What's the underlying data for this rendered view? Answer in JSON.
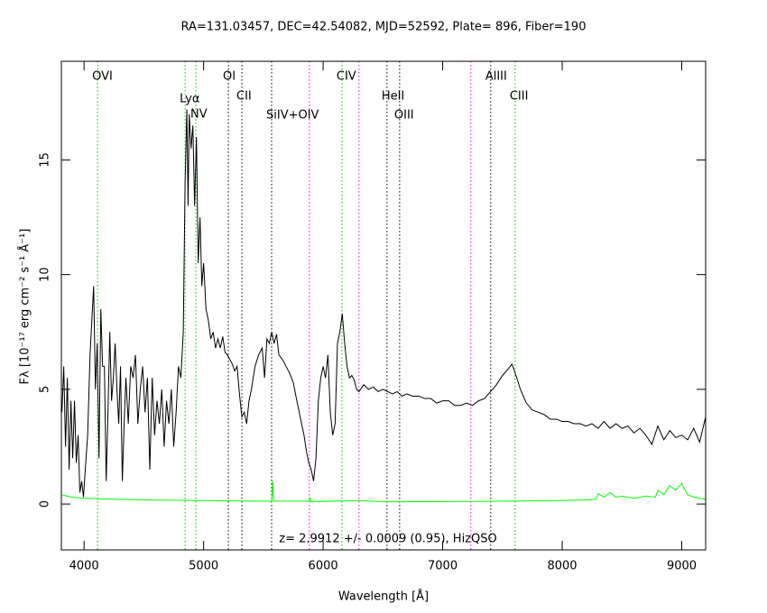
{
  "chart_data": {
    "type": "line",
    "title": "RA=131.03457, DEC=42.54082, MJD=52592, Plate= 896, Fiber=190",
    "x_label": "Wavelength [Å]",
    "y_label": "Fλ [10⁻¹⁷ erg cm⁻² s⁻¹ Å⁻¹]",
    "annotation": "z= 2.9912 +/- 0.0009 (0.95), HizQSO",
    "xlim": [
      3810,
      9200
    ],
    "ylim": [
      -2,
      19.3
    ],
    "xticks": [
      4000,
      5000,
      6000,
      7000,
      8000,
      9000
    ],
    "yticks": [
      0,
      5,
      10,
      15
    ],
    "lines": [
      {
        "name": "OVI",
        "x": 4113,
        "color": "#00c800"
      },
      {
        "name": "Lyα",
        "x": 4845,
        "color": "#00c800"
      },
      {
        "name": "NV",
        "x": 4935,
        "color": "#00c800"
      },
      {
        "name": "OI",
        "x": 5207,
        "color": "#000000"
      },
      {
        "name": "CII",
        "x": 5320,
        "color": "#000000"
      },
      {
        "name": "SiIV+OIV",
        "x": 5569,
        "color": "#000000"
      },
      {
        "x": 5885,
        "color": "#ff00ff"
      },
      {
        "name": "CIV",
        "x": 6157,
        "color": "#00c800"
      },
      {
        "x": 6300,
        "color": "#ff00ff"
      },
      {
        "name": "HeII",
        "x": 6534,
        "color": "#000000"
      },
      {
        "name": "OIII",
        "x": 6640,
        "color": "#000000"
      },
      {
        "x": 7236,
        "color": "#ff00ff"
      },
      {
        "name": "AlIII",
        "x": 7402,
        "color": "#000000"
      },
      {
        "name": "CIII",
        "x": 7606,
        "color": "#00c800"
      }
    ],
    "series": [
      {
        "color": "#000000",
        "x": [
          3815,
          3830,
          3845,
          3860,
          3875,
          3890,
          3905,
          3920,
          3935,
          3950,
          3965,
          3980,
          3995,
          4010,
          4030,
          4050,
          4065,
          4080,
          4095,
          4110,
          4125,
          4140,
          4155,
          4170,
          4185,
          4200,
          4215,
          4230,
          4245,
          4260,
          4275,
          4290,
          4305,
          4320,
          4335,
          4350,
          4370,
          4390,
          4410,
          4430,
          4450,
          4470,
          4490,
          4510,
          4530,
          4550,
          4570,
          4590,
          4610,
          4630,
          4650,
          4670,
          4690,
          4710,
          4730,
          4750,
          4770,
          4790,
          4810,
          4830,
          4845,
          4860,
          4870,
          4880,
          4895,
          4910,
          4925,
          4940,
          4955,
          4970,
          4985,
          5000,
          5020,
          5040,
          5060,
          5080,
          5100,
          5120,
          5140,
          5160,
          5180,
          5200,
          5220,
          5240,
          5260,
          5280,
          5300,
          5320,
          5340,
          5360,
          5380,
          5400,
          5430,
          5460,
          5490,
          5510,
          5530,
          5550,
          5570,
          5590,
          5610,
          5630,
          5660,
          5690,
          5720,
          5750,
          5780,
          5800,
          5820,
          5840,
          5860,
          5880,
          5900,
          5920,
          5940,
          5960,
          5980,
          6000,
          6020,
          6040,
          6060,
          6080,
          6100,
          6120,
          6140,
          6160,
          6180,
          6200,
          6220,
          6240,
          6260,
          6280,
          6300,
          6340,
          6380,
          6420,
          6460,
          6500,
          6540,
          6580,
          6620,
          6660,
          6700,
          6750,
          6800,
          6850,
          6900,
          6950,
          7000,
          7050,
          7100,
          7150,
          7200,
          7250,
          7300,
          7350,
          7400,
          7450,
          7500,
          7550,
          7580,
          7620,
          7650,
          7700,
          7750,
          7800,
          7850,
          7900,
          7950,
          8000,
          8050,
          8100,
          8150,
          8200,
          8250,
          8300,
          8350,
          8400,
          8450,
          8500,
          8550,
          8600,
          8650,
          8700,
          8750,
          8800,
          8850,
          8900,
          8950,
          9000,
          9050,
          9100,
          9150,
          9200
        ],
        "values": [
          4.0,
          6.0,
          2.5,
          5.5,
          1.5,
          4.5,
          2.0,
          4.5,
          1.8,
          3.0,
          0.5,
          1.0,
          0.3,
          1.5,
          3.0,
          6.5,
          8.0,
          9.5,
          5.0,
          7.0,
          2.0,
          8.5,
          6.0,
          6.0,
          1.0,
          4.0,
          7.5,
          4.5,
          5.5,
          7.0,
          5.0,
          3.5,
          6.0,
          1.0,
          3.5,
          5.5,
          3.5,
          6.0,
          5.5,
          6.5,
          3.5,
          5.0,
          6.0,
          4.0,
          5.5,
          1.5,
          5.5,
          3.0,
          4.5,
          3.5,
          5.0,
          2.5,
          4.5,
          3.5,
          5.0,
          2.5,
          4.0,
          6.0,
          5.5,
          7.5,
          14.0,
          17.2,
          13.0,
          17.0,
          15.5,
          16.5,
          13.0,
          16.0,
          10.5,
          12.5,
          9.5,
          10.5,
          8.5,
          8.0,
          7.2,
          7.5,
          6.8,
          7.2,
          6.8,
          7.3,
          6.6,
          6.5,
          6.3,
          6.1,
          5.8,
          6.0,
          4.8,
          3.8,
          4.0,
          3.5,
          4.5,
          5.0,
          6.0,
          6.5,
          6.8,
          5.5,
          7.2,
          7.0,
          7.5,
          7.0,
          7.4,
          6.5,
          6.3,
          6.0,
          5.7,
          5.3,
          4.5,
          4.0,
          3.5,
          3.0,
          2.3,
          1.8,
          1.5,
          1.0,
          2.0,
          4.5,
          5.5,
          6.0,
          5.5,
          6.5,
          4.0,
          3.0,
          3.5,
          7.0,
          7.5,
          8.3,
          7.0,
          6.0,
          5.5,
          5.6,
          5.4,
          5.0,
          4.9,
          5.2,
          5.0,
          5.1,
          4.9,
          5.0,
          4.9,
          4.8,
          4.9,
          4.7,
          4.8,
          4.7,
          4.7,
          4.6,
          4.6,
          4.4,
          4.5,
          4.5,
          4.3,
          4.3,
          4.4,
          4.3,
          4.5,
          4.6,
          4.9,
          5.2,
          5.6,
          5.9,
          6.1,
          5.5,
          5.0,
          4.4,
          4.1,
          4.0,
          3.9,
          3.7,
          3.7,
          3.6,
          3.6,
          3.5,
          3.5,
          3.4,
          3.5,
          3.3,
          3.6,
          3.3,
          3.5,
          3.3,
          3.4,
          3.1,
          3.3,
          3.0,
          2.6,
          3.4,
          2.8,
          3.2,
          2.9,
          3.0,
          2.8,
          3.3,
          2.7,
          3.8
        ]
      },
      {
        "color": "#00ff00",
        "x": [
          3815,
          3900,
          4000,
          4300,
          4600,
          5000,
          5500,
          5570,
          5577,
          5585,
          5885,
          5890,
          5900,
          6300,
          6500,
          7000,
          7500,
          8000,
          8280,
          8300,
          8350,
          8400,
          8450,
          8500,
          8600,
          8700,
          8780,
          8800,
          8850,
          8900,
          8950,
          9000,
          9050,
          9100,
          9200
        ],
        "values": [
          0.4,
          0.3,
          0.25,
          0.2,
          0.17,
          0.15,
          0.12,
          0.12,
          1.0,
          0.12,
          0.12,
          0.3,
          0.1,
          0.15,
          0.1,
          0.1,
          0.12,
          0.15,
          0.2,
          0.45,
          0.3,
          0.5,
          0.3,
          0.35,
          0.25,
          0.35,
          0.3,
          0.6,
          0.4,
          0.8,
          0.6,
          0.9,
          0.4,
          0.3,
          0.2
        ]
      }
    ]
  }
}
